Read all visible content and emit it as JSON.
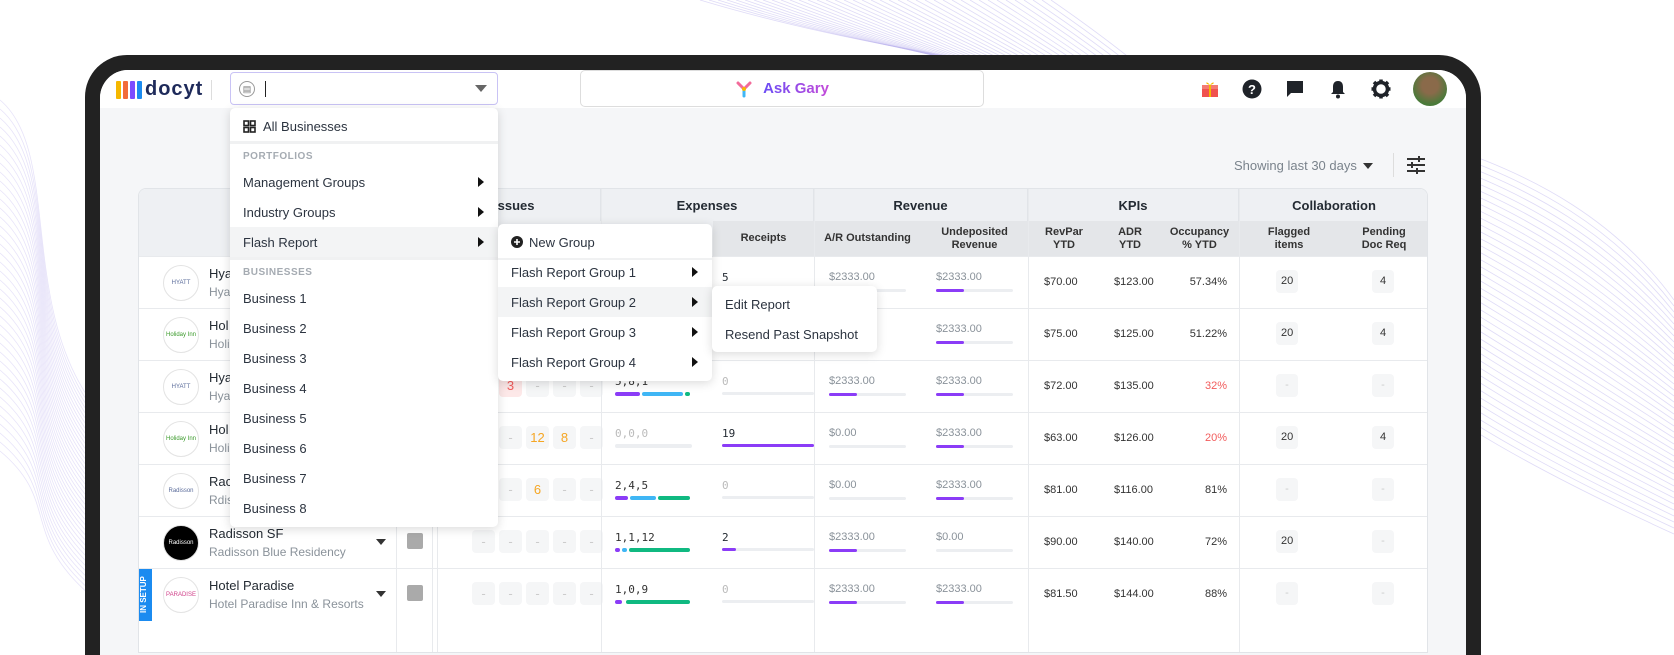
{
  "header": {
    "logo_text": "docyt",
    "business_selector": {
      "value": "",
      "icon": "store-icon"
    },
    "ask_gary_label": "Ask Gary",
    "icons": [
      "gift-icon",
      "help-icon",
      "chat-icon",
      "bell-icon",
      "gear-icon",
      "avatar"
    ]
  },
  "toolbar": {
    "date_range": "Showing last 30 days",
    "filter_icon": "sliders-icon"
  },
  "dropdown": {
    "all_businesses": "All Businesses",
    "portfolios_label": "PORTFOLIOS",
    "portfolios": [
      "Management Groups",
      "Industry Groups",
      "Flash Report"
    ],
    "businesses_label": "BUSINESSES",
    "businesses": [
      "Business 1",
      "Business 2",
      "Business 3",
      "Business 4",
      "Business 5",
      "Business 6",
      "Business 7",
      "Business 8"
    ],
    "flash_submenu": {
      "new_group": "New Group",
      "groups": [
        "Flash Report Group 1",
        "Flash Report Group 2",
        "Flash Report Group 3",
        "Flash Report Group 4"
      ]
    },
    "group_submenu": [
      "Edit Report",
      "Resend Past Snapshot"
    ]
  },
  "table": {
    "groups": [
      "Issues",
      "Expenses",
      "Revenue",
      "KPIs",
      "Collaboration"
    ],
    "group_issues_visible": "ssues",
    "columns": {
      "receipts": "Receipts",
      "ar": "A/R Outstanding",
      "undep": "Undeposited Revenue",
      "revpar": "RevPar YTD",
      "adr": "ADR YTD",
      "occ": "Occupancy % YTD",
      "flagged": "Flagged items",
      "pending": "Pending Doc Req"
    },
    "colors": {
      "purple": "#8b3cf7",
      "blue": "#3fb6f5",
      "green": "#10b981",
      "red": "#f25c5c",
      "orange": "#f5a623"
    },
    "rows": [
      {
        "name": "Hya",
        "sub": "Hya",
        "logo": "HYATT",
        "issues": [
          "",
          "",
          "",
          "",
          ""
        ],
        "expenses": "",
        "exp_split": [],
        "receipts": "5",
        "receipts_pct": 0,
        "ar": "$2333.00",
        "ar_pct": 0,
        "undep": "$2333.00",
        "undep_pct": 37,
        "revpar": "$70.00",
        "adr": "$123.00",
        "occ": "57.34%",
        "occ_low": false,
        "flagged": "20",
        "pending": "4"
      },
      {
        "name": "Hol",
        "sub": "Holi",
        "logo": "Holiday Inn",
        "issues": [
          "",
          "",
          "",
          "",
          ""
        ],
        "expenses": "",
        "exp_split": [],
        "receipts": "",
        "receipts_pct": 0,
        "ar": "",
        "ar_pct": 0,
        "undep": "$2333.00",
        "undep_pct": 37,
        "revpar": "$75.00",
        "adr": "$125.00",
        "occ": "51.22%",
        "occ_low": false,
        "flagged": "20",
        "pending": "4"
      },
      {
        "name": "Hya",
        "sub": "Hya",
        "logo": "HYATT",
        "issues": [
          "",
          "3",
          "-",
          "-",
          "-"
        ],
        "expenses": "5,8,1",
        "exp_split": [
          5,
          8,
          1
        ],
        "receipts": "0",
        "receipts_pct": 0,
        "ar": "$2333.00",
        "ar_pct": 37,
        "undep": "$2333.00",
        "undep_pct": 37,
        "revpar": "$72.00",
        "adr": "$135.00",
        "occ": "32%",
        "occ_low": true,
        "flagged": "-",
        "pending": "-"
      },
      {
        "name": "Hol",
        "sub": "Holi",
        "logo": "Holiday Inn",
        "issues": [
          "",
          "-",
          "12",
          "8",
          "-"
        ],
        "expenses": "0,0,0",
        "exp_split": [
          0,
          0,
          0
        ],
        "receipts": "19",
        "receipts_pct": 100,
        "ar": "$0.00",
        "ar_pct": 0,
        "undep": "$2333.00",
        "undep_pct": 37,
        "revpar": "$63.00",
        "adr": "$126.00",
        "occ": "20%",
        "occ_low": true,
        "flagged": "20",
        "pending": "4"
      },
      {
        "name": "Rac",
        "sub": "Rdis",
        "logo": "Radisson",
        "issues": [
          "",
          "-",
          "6",
          "-",
          "-"
        ],
        "expenses": "2,4,5",
        "exp_split": [
          2,
          4,
          5
        ],
        "receipts": "0",
        "receipts_pct": 0,
        "ar": "$0.00",
        "ar_pct": 0,
        "undep": "$2333.00",
        "undep_pct": 37,
        "revpar": "$81.00",
        "adr": "$116.00",
        "occ": "81%",
        "occ_low": false,
        "flagged": "-",
        "pending": "-"
      },
      {
        "name": "Radisson SF",
        "sub": "Radisson Blue Residency",
        "logo": "Radisson",
        "issues": [
          "-",
          "-",
          "-",
          "-",
          "-"
        ],
        "expenses": "1,1,12",
        "exp_split": [
          1,
          1,
          12
        ],
        "receipts": "2",
        "receipts_pct": 15,
        "ar": "$2333.00",
        "ar_pct": 37,
        "undep": "$0.00",
        "undep_pct": 0,
        "revpar": "$90.00",
        "adr": "$140.00",
        "occ": "72%",
        "occ_low": false,
        "flagged": "20",
        "pending": "-"
      },
      {
        "name": "Hotel Paradise",
        "sub": "Hotel Paradise Inn & Resorts",
        "logo": "PARADISE",
        "setup": "IN SETUP",
        "issues": [
          "-",
          "-",
          "-",
          "-",
          "-"
        ],
        "expenses": "1,0,9",
        "exp_split": [
          1,
          0,
          9
        ],
        "receipts": "0",
        "receipts_pct": 0,
        "ar": "$2333.00",
        "ar_pct": 37,
        "undep": "$2333.00",
        "undep_pct": 37,
        "revpar": "$81.50",
        "adr": "$144.00",
        "occ": "88%",
        "occ_low": false,
        "flagged": "-",
        "pending": "-"
      }
    ]
  }
}
